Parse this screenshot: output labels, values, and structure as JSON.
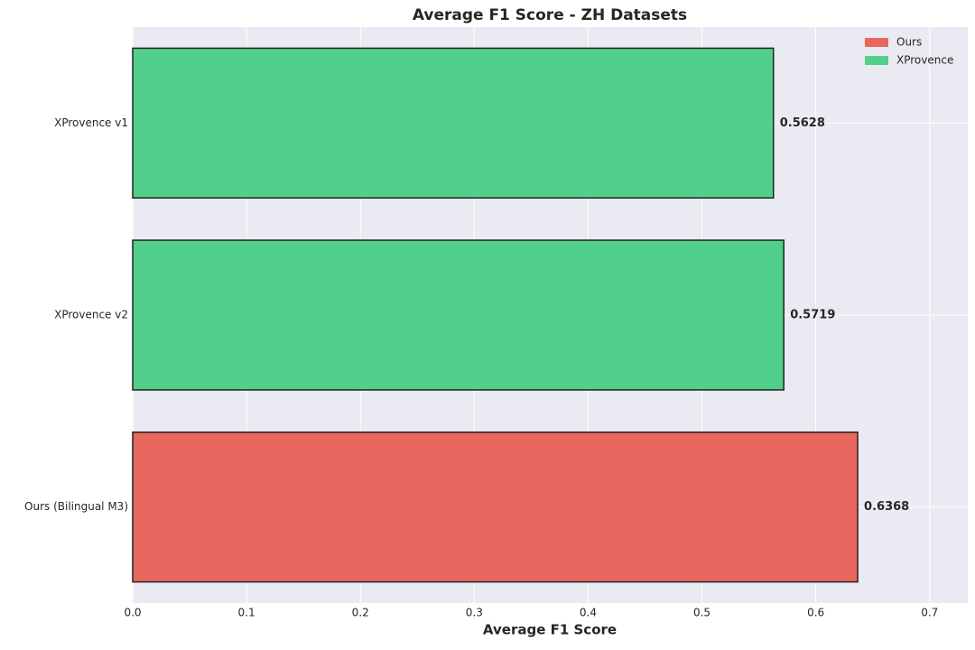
{
  "chart_data": {
    "type": "barh",
    "title": "Average F1 Score - ZH Datasets",
    "xlabel": "Average F1 Score",
    "categories": [
      "XProvence v1",
      "XProvence v2",
      "Ours (Bilingual M3)"
    ],
    "series": [
      {
        "name": "Ours",
        "color": "#e8675f",
        "values": [
          null,
          null,
          0.6368
        ]
      },
      {
        "name": "XProvence",
        "color": "#52d08b",
        "values": [
          0.5628,
          0.5719,
          null
        ]
      }
    ],
    "xlim": [
      0,
      0.7335
    ],
    "xticks": [
      {
        "value": 0,
        "label": "0.0"
      },
      0.1,
      0.2,
      0.3,
      0.4,
      0.5,
      0.6,
      0.7
    ],
    "grid": true,
    "legend": "upper right"
  }
}
